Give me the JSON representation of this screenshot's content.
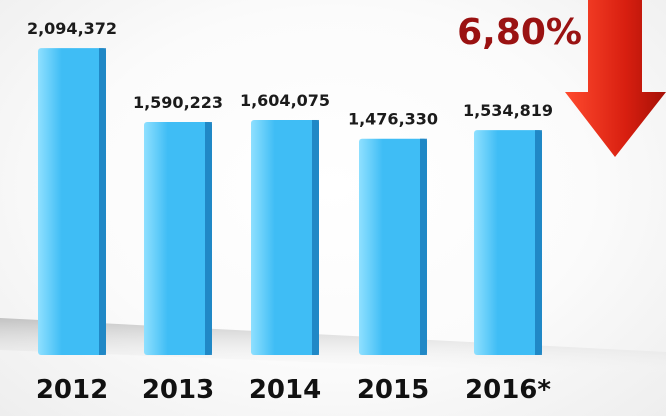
{
  "chart_data": {
    "type": "bar",
    "categories": [
      "2012",
      "2013",
      "2014",
      "2015",
      "2016*"
    ],
    "values": [
      2094372,
      1590223,
      1604075,
      1476330,
      1534819
    ],
    "value_labels": [
      "2,094,372",
      "1,590,223",
      "1,604,075",
      "1,476,330",
      "1,534,819"
    ],
    "title": "",
    "xlabel": "",
    "ylabel": "",
    "ylim": [
      0,
      2150000
    ],
    "grid": false,
    "legend": "none",
    "annotations": [
      {
        "text": "6,80%",
        "direction": "down"
      }
    ],
    "colors": {
      "bar_face": "#3fbdf5",
      "bar_light": "#8fe0ff",
      "bar_side": "#1b7fbd",
      "arrow": "#d81f10",
      "annotation_text": "#9a1212"
    }
  }
}
